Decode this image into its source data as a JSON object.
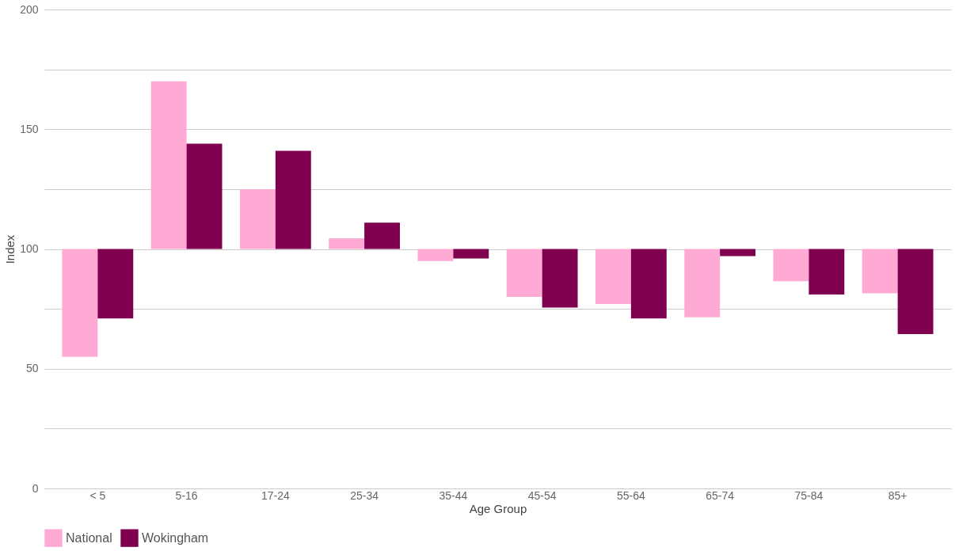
{
  "chart_data": {
    "type": "bar",
    "xlabel": "Age Group",
    "ylabel": "Index",
    "categories": [
      "< 5",
      "5-16",
      "17-24",
      "25-34",
      "35-44",
      "45-54",
      "55-64",
      "65-74",
      "75-84",
      "85+"
    ],
    "series": [
      {
        "name": "National",
        "color": "#ffaad4",
        "base": [
          100,
          100,
          100,
          100,
          100,
          100,
          100,
          100,
          100,
          100
        ],
        "values": [
          -45,
          70,
          25,
          4.5,
          -5,
          -20,
          -23,
          -28.5,
          -13.5,
          -18.5
        ]
      },
      {
        "name": "Wokingham",
        "color": "#800050",
        "base": [
          100,
          100,
          100,
          100,
          100,
          100,
          100,
          100,
          100,
          100
        ],
        "values": [
          -29,
          44,
          41,
          11,
          -4,
          -24.5,
          -29,
          -3,
          -19,
          -35.5
        ]
      }
    ],
    "ylim": [
      0,
      200
    ],
    "yticks": [
      0,
      {
        "value": 25,
        "label": null
      },
      50,
      {
        "value": 75,
        "label": null
      },
      100,
      {
        "value": 125,
        "label": null
      },
      150,
      {
        "value": 175,
        "label": null
      },
      200
    ],
    "grid": "y",
    "legend": "bottom"
  }
}
